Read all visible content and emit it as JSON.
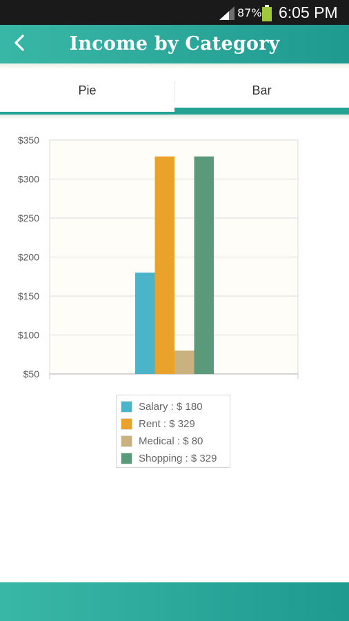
{
  "status_bar": {
    "battery_percent": "87%",
    "time": "6:05 PM",
    "icons": [
      "signal-icon",
      "battery-icon"
    ]
  },
  "header": {
    "title": "Income by Category",
    "back_icon": "chevron-left-icon"
  },
  "tabs": [
    {
      "label": "Pie",
      "selected": false
    },
    {
      "label": "Bar",
      "selected": true
    }
  ],
  "colors": {
    "accent": "#24a394",
    "salary": "#4bb4c8",
    "rent": "#eba22a",
    "medical": "#c9b27f",
    "shopping": "#5a9a7a",
    "plot_background": "#fefdf7"
  },
  "chart_data": {
    "type": "bar",
    "categories": [
      "Salary",
      "Rent",
      "Medical",
      "Shopping"
    ],
    "values": [
      180,
      329,
      80,
      329
    ],
    "ylim": [
      50,
      350
    ],
    "yticks": [
      50,
      100,
      150,
      200,
      250,
      300,
      350
    ],
    "ytick_labels": [
      "$50",
      "$100",
      "$150",
      "$200",
      "$250",
      "$300",
      "$350"
    ],
    "grid": true,
    "legend_position": "bottom-center",
    "legend": [
      "Salary : $ 180",
      "Rent : $ 329",
      "Medical : $ 80",
      "Shopping : $ 329"
    ]
  }
}
